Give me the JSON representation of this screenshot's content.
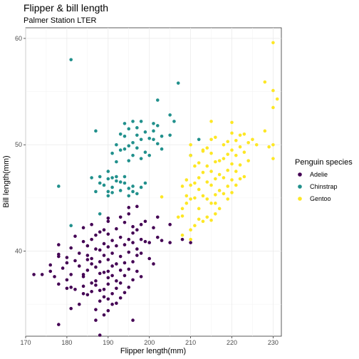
{
  "chart_data": {
    "type": "scatter",
    "title": "Flipper & bill length",
    "subtitle": "Palmer Station LTER",
    "xlabel": "Flipper length(mm)",
    "ylabel": "Bill length(mm)",
    "xlim": [
      170,
      232
    ],
    "ylim": [
      32,
      61
    ],
    "xticks": [
      170,
      180,
      190,
      200,
      210,
      220,
      230
    ],
    "yticks": [
      40,
      50,
      60
    ],
    "grid": true,
    "legend_position": "right",
    "legend_title": "Penguin species",
    "series": [
      {
        "name": "Adelie",
        "color": "#440154",
        "points": [
          [
            172,
            37.8
          ],
          [
            174,
            37.8
          ],
          [
            176,
            38.7
          ],
          [
            176,
            38.1
          ],
          [
            177,
            37.6
          ],
          [
            178,
            39.5
          ],
          [
            178,
            40.6
          ],
          [
            178,
            36.9
          ],
          [
            178,
            33.1
          ],
          [
            178,
            39.7
          ],
          [
            179,
            38.4
          ],
          [
            180,
            39.4
          ],
          [
            180,
            36.5
          ],
          [
            180,
            38.9
          ],
          [
            180,
            37.3
          ],
          [
            181,
            37.8
          ],
          [
            181,
            36.6
          ],
          [
            181,
            40.3
          ],
          [
            181,
            34.6
          ],
          [
            182,
            39.1
          ],
          [
            182,
            41.4
          ],
          [
            182,
            36.4
          ],
          [
            183,
            35.0
          ],
          [
            183,
            38.6
          ],
          [
            183,
            39.8
          ],
          [
            184,
            36.7
          ],
          [
            184,
            37.6
          ],
          [
            184,
            36.0
          ],
          [
            184,
            40.9
          ],
          [
            184,
            37.8
          ],
          [
            184,
            42.2
          ],
          [
            185,
            39.6
          ],
          [
            185,
            35.9
          ],
          [
            185,
            38.2
          ],
          [
            185,
            40.5
          ],
          [
            185,
            39.2
          ],
          [
            186,
            41.1
          ],
          [
            186,
            36.2
          ],
          [
            186,
            37.0
          ],
          [
            186,
            39.3
          ],
          [
            186,
            42.5
          ],
          [
            186,
            38.8
          ],
          [
            187,
            37.2
          ],
          [
            187,
            34.5
          ],
          [
            187,
            40.2
          ],
          [
            187,
            36.8
          ],
          [
            187,
            38.5
          ],
          [
            187,
            41.5
          ],
          [
            188,
            35.3
          ],
          [
            188,
            37.9
          ],
          [
            188,
            39.0
          ],
          [
            188,
            40.1
          ],
          [
            188,
            41.8
          ],
          [
            188,
            36.3
          ],
          [
            189,
            36.4
          ],
          [
            189,
            38.0
          ],
          [
            189,
            39.6
          ],
          [
            189,
            42.0
          ],
          [
            189,
            35.7
          ],
          [
            189,
            40.7
          ],
          [
            189,
            34.0
          ],
          [
            190,
            35.5
          ],
          [
            190,
            36.9
          ],
          [
            190,
            38.1
          ],
          [
            190,
            39.2
          ],
          [
            190,
            40.4
          ],
          [
            190,
            41.6
          ],
          [
            190,
            42.8
          ],
          [
            190,
            37.5
          ],
          [
            190,
            34.4
          ],
          [
            190,
            43.1
          ],
          [
            191,
            36.0
          ],
          [
            191,
            37.7
          ],
          [
            191,
            39.8
          ],
          [
            191,
            41.0
          ],
          [
            191,
            38.6
          ],
          [
            191,
            35.0
          ],
          [
            192,
            37.2
          ],
          [
            192,
            38.8
          ],
          [
            192,
            40.5
          ],
          [
            192,
            42.1
          ],
          [
            192,
            36.5
          ],
          [
            193,
            37.0
          ],
          [
            193,
            38.2
          ],
          [
            193,
            39.5
          ],
          [
            193,
            41.3
          ],
          [
            193,
            43.2
          ],
          [
            193,
            35.6
          ],
          [
            194,
            36.1
          ],
          [
            194,
            38.9
          ],
          [
            194,
            40.6
          ],
          [
            194,
            42.7
          ],
          [
            194,
            37.7
          ],
          [
            195,
            38.3
          ],
          [
            195,
            39.9
          ],
          [
            195,
            41.1
          ],
          [
            195,
            43.5
          ],
          [
            195,
            44.1
          ],
          [
            195,
            36.6
          ],
          [
            196,
            37.3
          ],
          [
            196,
            40.8
          ],
          [
            196,
            42.3
          ],
          [
            196,
            39.0
          ],
          [
            196,
            41.7
          ],
          [
            197,
            38.1
          ],
          [
            197,
            40.2
          ],
          [
            197,
            42.0
          ],
          [
            197,
            44.2
          ],
          [
            197,
            39.6
          ],
          [
            198,
            37.6
          ],
          [
            198,
            41.1
          ],
          [
            198,
            42.5
          ],
          [
            198,
            39.8
          ],
          [
            199,
            40.9
          ],
          [
            199,
            42.8
          ],
          [
            200,
            39.3
          ],
          [
            200,
            40.8
          ],
          [
            201,
            38.8
          ],
          [
            201,
            42.2
          ],
          [
            202,
            41.3
          ],
          [
            202,
            43.2
          ],
          [
            203,
            41.0
          ],
          [
            205,
            40.8
          ],
          [
            205,
            42.5
          ],
          [
            208,
            41.1
          ],
          [
            210,
            40.8
          ],
          [
            196,
            33.5
          ],
          [
            187,
            33.5
          ],
          [
            188,
            32.1
          ],
          [
            192,
            35.1
          ]
        ]
      },
      {
        "name": "Chinstrap",
        "color": "#21908C",
        "points": [
          [
            178,
            46.1
          ],
          [
            181,
            58.0
          ],
          [
            187,
            51.3
          ],
          [
            186,
            46.9
          ],
          [
            187,
            45.6
          ],
          [
            188,
            46.4
          ],
          [
            188,
            47.0
          ],
          [
            189,
            46.2
          ],
          [
            190,
            46.8
          ],
          [
            190,
            47.5
          ],
          [
            190,
            45.2
          ],
          [
            191,
            46.0
          ],
          [
            191,
            46.9
          ],
          [
            191,
            45.5
          ],
          [
            191,
            49.2
          ],
          [
            192,
            46.6
          ],
          [
            192,
            47.0
          ],
          [
            192,
            48.4
          ],
          [
            192,
            50.0
          ],
          [
            193,
            45.7
          ],
          [
            193,
            46.5
          ],
          [
            193,
            49.5
          ],
          [
            193,
            51.0
          ],
          [
            194,
            46.4
          ],
          [
            194,
            47.0
          ],
          [
            194,
            49.6
          ],
          [
            194,
            50.8
          ],
          [
            194,
            52.0
          ],
          [
            195,
            45.9
          ],
          [
            195,
            48.5
          ],
          [
            195,
            49.9
          ],
          [
            195,
            51.5
          ],
          [
            195,
            45.2
          ],
          [
            196,
            46.1
          ],
          [
            196,
            49.0
          ],
          [
            196,
            50.2
          ],
          [
            196,
            52.2
          ],
          [
            197,
            45.4
          ],
          [
            197,
            49.7
          ],
          [
            197,
            50.9
          ],
          [
            197,
            51.6
          ],
          [
            198,
            46.0
          ],
          [
            198,
            48.7
          ],
          [
            198,
            50.5
          ],
          [
            198,
            52.2
          ],
          [
            199,
            49.3
          ],
          [
            199,
            51.2
          ],
          [
            199,
            46.4
          ],
          [
            200,
            49.0
          ],
          [
            200,
            50.6
          ],
          [
            201,
            50.5
          ],
          [
            201,
            51.3
          ],
          [
            201,
            52.0
          ],
          [
            202,
            50.1
          ],
          [
            202,
            51.8
          ],
          [
            202,
            54.2
          ],
          [
            203,
            49.6
          ],
          [
            203,
            50.8
          ],
          [
            205,
            50.9
          ],
          [
            205,
            52.8
          ],
          [
            206,
            52.2
          ],
          [
            207,
            55.8
          ],
          [
            210,
            49.0
          ],
          [
            212,
            50.5
          ],
          [
            188,
            43.5
          ],
          [
            190,
            45.6
          ],
          [
            196,
            45.6
          ],
          [
            181,
            42.4
          ]
        ]
      },
      {
        "name": "Gentoo",
        "color": "#FDE725",
        "points": [
          [
            203,
            45.1
          ],
          [
            207,
            43.2
          ],
          [
            208,
            44.0
          ],
          [
            208,
            46.1
          ],
          [
            208,
            43.3
          ],
          [
            209,
            44.5
          ],
          [
            209,
            45.2
          ],
          [
            209,
            46.7
          ],
          [
            210,
            42.0
          ],
          [
            210,
            44.9
          ],
          [
            210,
            46.2
          ],
          [
            210,
            49.0
          ],
          [
            210,
            50.0
          ],
          [
            211,
            42.4
          ],
          [
            211,
            45.0
          ],
          [
            211,
            46.4
          ],
          [
            211,
            48.0
          ],
          [
            212,
            43.0
          ],
          [
            212,
            44.0
          ],
          [
            212,
            45.8
          ],
          [
            212,
            46.9
          ],
          [
            212,
            48.3
          ],
          [
            213,
            42.8
          ],
          [
            213,
            45.2
          ],
          [
            213,
            47.4
          ],
          [
            213,
            49.5
          ],
          [
            214,
            43.2
          ],
          [
            214,
            44.9
          ],
          [
            214,
            46.5
          ],
          [
            214,
            48.0
          ],
          [
            214,
            49.7
          ],
          [
            215,
            42.9
          ],
          [
            215,
            44.5
          ],
          [
            215,
            46.2
          ],
          [
            215,
            47.5
          ],
          [
            215,
            49.2
          ],
          [
            215,
            50.5
          ],
          [
            216,
            43.5
          ],
          [
            216,
            45.3
          ],
          [
            216,
            46.8
          ],
          [
            216,
            48.4
          ],
          [
            216,
            50.7
          ],
          [
            217,
            44.0
          ],
          [
            217,
            45.7
          ],
          [
            217,
            47.2
          ],
          [
            217,
            48.5
          ],
          [
            218,
            45.4
          ],
          [
            218,
            46.9
          ],
          [
            218,
            48.7
          ],
          [
            218,
            50.0
          ],
          [
            219,
            44.9
          ],
          [
            219,
            46.1
          ],
          [
            219,
            47.6
          ],
          [
            219,
            49.1
          ],
          [
            219,
            50.3
          ],
          [
            220,
            45.5
          ],
          [
            220,
            46.7
          ],
          [
            220,
            48.2
          ],
          [
            220,
            49.5
          ],
          [
            220,
            51.1
          ],
          [
            220,
            52.1
          ],
          [
            221,
            46.2
          ],
          [
            221,
            47.5
          ],
          [
            221,
            49.0
          ],
          [
            221,
            50.4
          ],
          [
            222,
            46.8
          ],
          [
            222,
            48.1
          ],
          [
            222,
            49.8
          ],
          [
            222,
            50.9
          ],
          [
            223,
            47.0
          ],
          [
            223,
            49.3
          ],
          [
            223,
            51.0
          ],
          [
            224,
            48.5
          ],
          [
            224,
            50.2
          ],
          [
            225,
            50.5
          ],
          [
            226,
            50.0
          ],
          [
            228,
            51.3
          ],
          [
            228,
            55.9
          ],
          [
            229,
            49.8
          ],
          [
            230,
            53.5
          ],
          [
            230,
            59.6
          ],
          [
            230,
            55.1
          ],
          [
            231,
            54.3
          ],
          [
            230,
            50.0
          ],
          [
            230,
            48.7
          ],
          [
            215,
            52.2
          ],
          [
            213,
            49.4
          ],
          [
            210,
            41.1
          ],
          [
            208,
            41.5
          ],
          [
            216,
            44.5
          ]
        ]
      }
    ]
  }
}
